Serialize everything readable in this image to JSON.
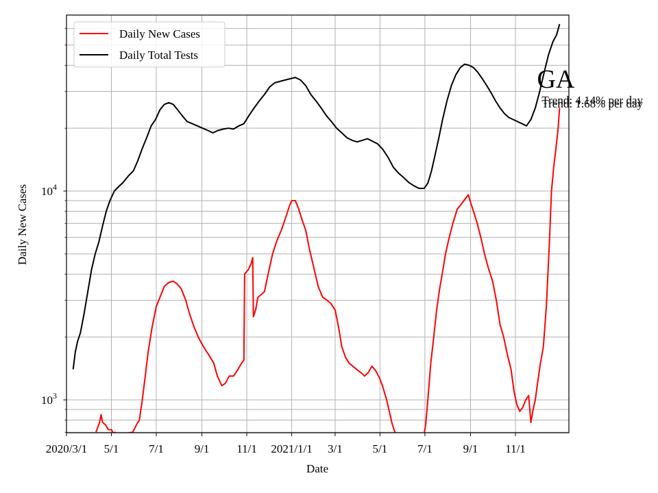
{
  "chart_data": {
    "type": "line",
    "state_label": "GA",
    "annotations": [
      "Trend: 4.14% per day",
      "Trend: 1.68% per day"
    ],
    "xlabel": "Date",
    "ylabel": "Daily New Cases",
    "yscale": "log",
    "xlim": [
      "2020-03-01",
      "2021-12-31"
    ],
    "ylim": [
      700,
      70000
    ],
    "grid": true,
    "legend": {
      "placement": "upper-left",
      "entries": [
        "Daily New Cases",
        "Daily Total Tests"
      ]
    },
    "x_ticks": [
      {
        "date": "2020-03-01",
        "label": "2020/3/1"
      },
      {
        "date": "2020-05-01",
        "label": "5/1"
      },
      {
        "date": "2020-07-01",
        "label": "7/1"
      },
      {
        "date": "2020-09-01",
        "label": "9/1"
      },
      {
        "date": "2020-11-01",
        "label": "11/1"
      },
      {
        "date": "2021-01-01",
        "label": "2021/1/1"
      },
      {
        "date": "2021-03-01",
        "label": "3/1"
      },
      {
        "date": "2021-05-01",
        "label": "5/1"
      },
      {
        "date": "2021-07-01",
        "label": "7/1"
      },
      {
        "date": "2021-09-01",
        "label": "9/1"
      },
      {
        "date": "2021-11-01",
        "label": "11/1"
      }
    ],
    "y_major_ticks": [
      {
        "value": 1000,
        "base": "10",
        "exp": "3"
      },
      {
        "value": 10000,
        "base": "10",
        "exp": "4"
      }
    ],
    "y_minor_ticks": [
      700,
      800,
      900,
      2000,
      3000,
      4000,
      5000,
      6000,
      7000,
      8000,
      9000,
      20000,
      30000,
      40000,
      50000,
      60000
    ],
    "series": [
      {
        "name": "Daily New Cases",
        "color": "#ff0000",
        "points": [
          [
            "2020-04-10",
            700
          ],
          [
            "2020-04-15",
            780
          ],
          [
            "2020-04-17",
            850
          ],
          [
            "2020-04-19",
            780
          ],
          [
            "2020-04-23",
            760
          ],
          [
            "2020-04-27",
            720
          ],
          [
            "2020-05-01",
            720
          ],
          [
            "2020-05-04",
            690
          ],
          [
            "2020-05-06",
            700
          ],
          [
            "2020-05-08",
            680
          ],
          [
            "2020-05-30",
            700
          ],
          [
            "2020-06-05",
            770
          ],
          [
            "2020-06-08",
            800
          ],
          [
            "2020-06-12",
            1000
          ],
          [
            "2020-06-16",
            1300
          ],
          [
            "2020-06-20",
            1700
          ],
          [
            "2020-06-25",
            2200
          ],
          [
            "2020-07-01",
            2800
          ],
          [
            "2020-07-06",
            3100
          ],
          [
            "2020-07-12",
            3500
          ],
          [
            "2020-07-18",
            3650
          ],
          [
            "2020-07-24",
            3700
          ],
          [
            "2020-07-29",
            3600
          ],
          [
            "2020-08-04",
            3400
          ],
          [
            "2020-08-10",
            3000
          ],
          [
            "2020-08-15",
            2600
          ],
          [
            "2020-08-20",
            2300
          ],
          [
            "2020-08-27",
            2000
          ],
          [
            "2020-09-03",
            1800
          ],
          [
            "2020-09-10",
            1650
          ],
          [
            "2020-09-17",
            1500
          ],
          [
            "2020-09-22",
            1300
          ],
          [
            "2020-09-28",
            1170
          ],
          [
            "2020-10-03",
            1200
          ],
          [
            "2020-10-08",
            1300
          ],
          [
            "2020-10-14",
            1300
          ],
          [
            "2020-10-20",
            1400
          ],
          [
            "2020-10-25",
            1500
          ],
          [
            "2020-10-28",
            1550
          ],
          [
            "2020-10-29",
            4000
          ],
          [
            "2020-11-03",
            4200
          ],
          [
            "2020-11-07",
            4500
          ],
          [
            "2020-11-09",
            4800
          ],
          [
            "2020-11-10",
            2500
          ],
          [
            "2020-11-13",
            2700
          ],
          [
            "2020-11-16",
            3100
          ],
          [
            "2020-11-21",
            3200
          ],
          [
            "2020-11-25",
            3300
          ],
          [
            "2020-11-30",
            4000
          ],
          [
            "2020-12-06",
            5000
          ],
          [
            "2020-12-12",
            5800
          ],
          [
            "2020-12-18",
            6500
          ],
          [
            "2020-12-24",
            7500
          ],
          [
            "2020-12-29",
            8500
          ],
          [
            "2021-01-01",
            9000
          ],
          [
            "2021-01-06",
            9000
          ],
          [
            "2021-01-10",
            8300
          ],
          [
            "2021-01-15",
            7300
          ],
          [
            "2021-01-20",
            6500
          ],
          [
            "2021-01-25",
            5300
          ],
          [
            "2021-01-31",
            4300
          ],
          [
            "2021-02-06",
            3500
          ],
          [
            "2021-02-12",
            3100
          ],
          [
            "2021-02-18",
            3000
          ],
          [
            "2021-02-23",
            2900
          ],
          [
            "2021-03-01",
            2700
          ],
          [
            "2021-03-06",
            2200
          ],
          [
            "2021-03-10",
            1800
          ],
          [
            "2021-03-15",
            1600
          ],
          [
            "2021-03-20",
            1500
          ],
          [
            "2021-03-25",
            1450
          ],
          [
            "2021-03-30",
            1400
          ],
          [
            "2021-04-05",
            1350
          ],
          [
            "2021-04-10",
            1300
          ],
          [
            "2021-04-15",
            1350
          ],
          [
            "2021-04-20",
            1450
          ],
          [
            "2021-04-25",
            1380
          ],
          [
            "2021-04-30",
            1280
          ],
          [
            "2021-05-05",
            1150
          ],
          [
            "2021-05-10",
            1000
          ],
          [
            "2021-05-14",
            870
          ],
          [
            "2021-05-17",
            780
          ],
          [
            "2021-05-20",
            720
          ],
          [
            "2021-05-22",
            690
          ],
          [
            "2021-06-30",
            690
          ],
          [
            "2021-07-02",
            760
          ],
          [
            "2021-07-05",
            1000
          ],
          [
            "2021-07-09",
            1500
          ],
          [
            "2021-07-13",
            2000
          ],
          [
            "2021-07-17",
            2700
          ],
          [
            "2021-07-21",
            3400
          ],
          [
            "2021-07-25",
            4100
          ],
          [
            "2021-07-29",
            5000
          ],
          [
            "2021-08-03",
            6000
          ],
          [
            "2021-08-08",
            7000
          ],
          [
            "2021-08-14",
            8200
          ],
          [
            "2021-08-20",
            8700
          ],
          [
            "2021-08-26",
            9300
          ],
          [
            "2021-08-29",
            9600
          ],
          [
            "2021-09-02",
            8600
          ],
          [
            "2021-09-06",
            7800
          ],
          [
            "2021-09-10",
            7000
          ],
          [
            "2021-09-15",
            6000
          ],
          [
            "2021-09-20",
            5000
          ],
          [
            "2021-09-25",
            4300
          ],
          [
            "2021-10-01",
            3700
          ],
          [
            "2021-10-06",
            3000
          ],
          [
            "2021-10-11",
            2300
          ],
          [
            "2021-10-16",
            2000
          ],
          [
            "2021-10-21",
            1650
          ],
          [
            "2021-10-26",
            1400
          ],
          [
            "2021-10-30",
            1100
          ],
          [
            "2021-11-03",
            950
          ],
          [
            "2021-11-07",
            880
          ],
          [
            "2021-11-11",
            920
          ],
          [
            "2021-11-15",
            1000
          ],
          [
            "2021-11-19",
            1050
          ],
          [
            "2021-11-22",
            780
          ],
          [
            "2021-11-25",
            900
          ],
          [
            "2021-11-28",
            1000
          ],
          [
            "2021-12-01",
            1200
          ],
          [
            "2021-12-05",
            1500
          ],
          [
            "2021-12-09",
            1800
          ],
          [
            "2021-12-13",
            2800
          ],
          [
            "2021-12-17",
            5500
          ],
          [
            "2021-12-20",
            10000
          ],
          [
            "2021-12-23",
            13000
          ],
          [
            "2021-12-26",
            16000
          ],
          [
            "2021-12-29",
            20000
          ],
          [
            "2021-12-31",
            25000
          ]
        ]
      },
      {
        "name": "Daily Total Tests",
        "color": "#000000",
        "points": [
          [
            "2020-03-10",
            1400
          ],
          [
            "2020-03-13",
            1700
          ],
          [
            "2020-03-16",
            1900
          ],
          [
            "2020-03-20",
            2100
          ],
          [
            "2020-03-25",
            2600
          ],
          [
            "2020-03-30",
            3300
          ],
          [
            "2020-04-04",
            4200
          ],
          [
            "2020-04-09",
            5000
          ],
          [
            "2020-04-14",
            5700
          ],
          [
            "2020-04-19",
            6800
          ],
          [
            "2020-04-24",
            8000
          ],
          [
            "2020-04-29",
            9000
          ],
          [
            "2020-05-05",
            10000
          ],
          [
            "2020-05-11",
            10500
          ],
          [
            "2020-05-17",
            11000
          ],
          [
            "2020-05-24",
            11800
          ],
          [
            "2020-05-31",
            12500
          ],
          [
            "2020-06-06",
            14000
          ],
          [
            "2020-06-12",
            16000
          ],
          [
            "2020-06-18",
            18000
          ],
          [
            "2020-06-24",
            20500
          ],
          [
            "2020-06-30",
            22000
          ],
          [
            "2020-07-06",
            24500
          ],
          [
            "2020-07-12",
            26000
          ],
          [
            "2020-07-18",
            26500
          ],
          [
            "2020-07-24",
            26000
          ],
          [
            "2020-07-30",
            24500
          ],
          [
            "2020-08-05",
            23000
          ],
          [
            "2020-08-12",
            21500
          ],
          [
            "2020-08-19",
            21000
          ],
          [
            "2020-08-26",
            20500
          ],
          [
            "2020-09-02",
            20000
          ],
          [
            "2020-09-09",
            19500
          ],
          [
            "2020-09-16",
            19000
          ],
          [
            "2020-09-23",
            19500
          ],
          [
            "2020-09-30",
            19800
          ],
          [
            "2020-10-07",
            20000
          ],
          [
            "2020-10-14",
            19800
          ],
          [
            "2020-10-21",
            20500
          ],
          [
            "2020-10-28",
            21000
          ],
          [
            "2020-11-04",
            23000
          ],
          [
            "2020-11-11",
            25000
          ],
          [
            "2020-11-18",
            27000
          ],
          [
            "2020-11-25",
            29000
          ],
          [
            "2020-12-02",
            31500
          ],
          [
            "2020-12-09",
            33000
          ],
          [
            "2020-12-16",
            33500
          ],
          [
            "2020-12-23",
            34000
          ],
          [
            "2020-12-30",
            34500
          ],
          [
            "2021-01-06",
            35000
          ],
          [
            "2021-01-13",
            34000
          ],
          [
            "2021-01-20",
            32000
          ],
          [
            "2021-01-27",
            29000
          ],
          [
            "2021-02-03",
            27000
          ],
          [
            "2021-02-10",
            25000
          ],
          [
            "2021-02-17",
            23000
          ],
          [
            "2021-02-24",
            21500
          ],
          [
            "2021-03-03",
            20000
          ],
          [
            "2021-03-10",
            19000
          ],
          [
            "2021-03-17",
            18000
          ],
          [
            "2021-03-24",
            17500
          ],
          [
            "2021-03-31",
            17200
          ],
          [
            "2021-04-07",
            17500
          ],
          [
            "2021-04-14",
            17800
          ],
          [
            "2021-04-21",
            17300
          ],
          [
            "2021-04-28",
            16800
          ],
          [
            "2021-05-05",
            15800
          ],
          [
            "2021-05-12",
            14500
          ],
          [
            "2021-05-19",
            13000
          ],
          [
            "2021-05-26",
            12200
          ],
          [
            "2021-06-02",
            11600
          ],
          [
            "2021-06-09",
            11000
          ],
          [
            "2021-06-16",
            10600
          ],
          [
            "2021-06-23",
            10300
          ],
          [
            "2021-06-30",
            10300
          ],
          [
            "2021-07-05",
            10900
          ],
          [
            "2021-07-10",
            12500
          ],
          [
            "2021-07-15",
            15000
          ],
          [
            "2021-07-20",
            18000
          ],
          [
            "2021-07-25",
            22000
          ],
          [
            "2021-07-31",
            27000
          ],
          [
            "2021-08-06",
            32000
          ],
          [
            "2021-08-12",
            36000
          ],
          [
            "2021-08-18",
            39000
          ],
          [
            "2021-08-24",
            40500
          ],
          [
            "2021-08-30",
            40000
          ],
          [
            "2021-09-05",
            39000
          ],
          [
            "2021-09-11",
            37000
          ],
          [
            "2021-09-17",
            34500
          ],
          [
            "2021-09-23",
            32000
          ],
          [
            "2021-09-29",
            29500
          ],
          [
            "2021-10-05",
            27000
          ],
          [
            "2021-10-11",
            25000
          ],
          [
            "2021-10-17",
            23500
          ],
          [
            "2021-10-23",
            22500
          ],
          [
            "2021-10-29",
            22000
          ],
          [
            "2021-11-04",
            21500
          ],
          [
            "2021-11-10",
            21000
          ],
          [
            "2021-11-16",
            20500
          ],
          [
            "2021-11-22",
            22000
          ],
          [
            "2021-11-28",
            25000
          ],
          [
            "2021-12-04",
            30000
          ],
          [
            "2021-12-10",
            37000
          ],
          [
            "2021-12-16",
            45000
          ],
          [
            "2021-12-22",
            52000
          ],
          [
            "2021-12-27",
            56000
          ],
          [
            "2021-12-31",
            63000
          ]
        ]
      }
    ]
  }
}
